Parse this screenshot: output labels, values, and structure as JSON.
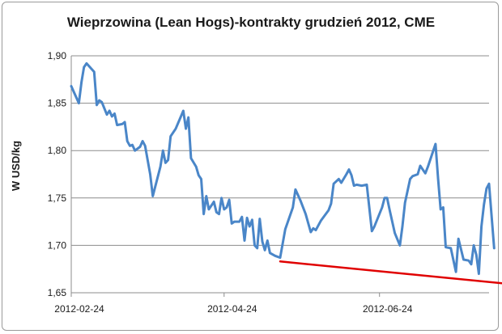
{
  "chart_data": {
    "type": "line",
    "title": "Wieprzowina (Lean Hogs)-kontrakty grudzień 2012, CME",
    "xlabel": "",
    "ylabel": "W USD/kg",
    "x_ticks": [
      "2012-02-24",
      "2012-04-24",
      "2012-06-24"
    ],
    "x_range": [
      "2012-02-24",
      "2012-08-06"
    ],
    "y_ticks": [
      "1,65",
      "1,70",
      "1,75",
      "1,80",
      "1,85",
      "1,90"
    ],
    "ylim": [
      1.65,
      1.9
    ],
    "grid": "horizontal",
    "legend": "none",
    "series": [
      {
        "color": "#4a86c8",
        "points": [
          [
            "2012-02-24",
            1.868
          ],
          [
            "2012-02-25",
            1.862
          ],
          [
            "2012-02-27",
            1.85
          ],
          [
            "2012-02-28",
            1.872
          ],
          [
            "2012-02-29",
            1.888
          ],
          [
            "2012-03-01",
            1.892
          ],
          [
            "2012-03-04",
            1.883
          ],
          [
            "2012-03-05",
            1.848
          ],
          [
            "2012-03-06",
            1.853
          ],
          [
            "2012-03-07",
            1.851
          ],
          [
            "2012-03-09",
            1.838
          ],
          [
            "2012-03-10",
            1.842
          ],
          [
            "2012-03-11",
            1.836
          ],
          [
            "2012-03-12",
            1.839
          ],
          [
            "2012-03-13",
            1.827
          ],
          [
            "2012-03-15",
            1.828
          ],
          [
            "2012-03-16",
            1.83
          ],
          [
            "2012-03-17",
            1.81
          ],
          [
            "2012-03-18",
            1.805
          ],
          [
            "2012-03-19",
            1.806
          ],
          [
            "2012-03-20",
            1.8
          ],
          [
            "2012-03-22",
            1.804
          ],
          [
            "2012-03-23",
            1.81
          ],
          [
            "2012-03-24",
            1.805
          ],
          [
            "2012-03-26",
            1.775
          ],
          [
            "2012-03-27",
            1.752
          ],
          [
            "2012-03-30",
            1.783
          ],
          [
            "2012-03-31",
            1.8
          ],
          [
            "2012-04-01",
            1.787
          ],
          [
            "2012-04-02",
            1.79
          ],
          [
            "2012-04-03",
            1.815
          ],
          [
            "2012-04-05",
            1.823
          ],
          [
            "2012-04-08",
            1.842
          ],
          [
            "2012-04-09",
            1.823
          ],
          [
            "2012-04-10",
            1.835
          ],
          [
            "2012-04-11",
            1.792
          ],
          [
            "2012-04-13",
            1.783
          ],
          [
            "2012-04-14",
            1.774
          ],
          [
            "2012-04-15",
            1.77
          ],
          [
            "2012-04-16",
            1.733
          ],
          [
            "2012-04-17",
            1.752
          ],
          [
            "2012-04-18",
            1.738
          ],
          [
            "2012-04-20",
            1.746
          ],
          [
            "2012-04-21",
            1.735
          ],
          [
            "2012-04-22",
            1.733
          ],
          [
            "2012-04-23",
            1.75
          ],
          [
            "2012-04-24",
            1.738
          ],
          [
            "2012-04-25",
            1.74
          ],
          [
            "2012-04-26",
            1.748
          ],
          [
            "2012-04-27",
            1.723
          ],
          [
            "2012-04-28",
            1.725
          ],
          [
            "2012-04-30",
            1.725
          ],
          [
            "2012-05-01",
            1.73
          ],
          [
            "2012-05-02",
            1.705
          ],
          [
            "2012-05-03",
            1.729
          ],
          [
            "2012-05-04",
            1.72
          ],
          [
            "2012-05-05",
            1.727
          ],
          [
            "2012-05-06",
            1.7
          ],
          [
            "2012-05-07",
            1.697
          ],
          [
            "2012-05-08",
            1.728
          ],
          [
            "2012-05-09",
            1.704
          ],
          [
            "2012-05-10",
            1.695
          ],
          [
            "2012-05-11",
            1.705
          ],
          [
            "2012-05-12",
            1.692
          ],
          [
            "2012-05-14",
            1.689
          ],
          [
            "2012-05-16",
            1.687
          ],
          [
            "2012-05-18",
            1.717
          ],
          [
            "2012-05-21",
            1.74
          ],
          [
            "2012-05-22",
            1.759
          ],
          [
            "2012-05-24",
            1.747
          ],
          [
            "2012-05-26",
            1.733
          ],
          [
            "2012-05-28",
            1.714
          ],
          [
            "2012-05-29",
            1.718
          ],
          [
            "2012-05-30",
            1.716
          ],
          [
            "2012-06-01",
            1.726
          ],
          [
            "2012-06-04",
            1.737
          ],
          [
            "2012-06-05",
            1.744
          ],
          [
            "2012-06-06",
            1.765
          ],
          [
            "2012-06-08",
            1.77
          ],
          [
            "2012-06-09",
            1.766
          ],
          [
            "2012-06-11",
            1.775
          ],
          [
            "2012-06-12",
            1.78
          ],
          [
            "2012-06-13",
            1.774
          ],
          [
            "2012-06-14",
            1.763
          ],
          [
            "2012-06-15",
            1.764
          ],
          [
            "2012-06-17",
            1.763
          ],
          [
            "2012-06-19",
            1.764
          ],
          [
            "2012-06-21",
            1.715
          ],
          [
            "2012-06-22",
            1.72
          ],
          [
            "2012-06-25",
            1.74
          ],
          [
            "2012-06-26",
            1.75
          ],
          [
            "2012-06-27",
            1.75
          ],
          [
            "2012-06-28",
            1.737
          ],
          [
            "2012-06-30",
            1.713
          ],
          [
            "2012-07-02",
            1.7
          ],
          [
            "2012-07-03",
            1.72
          ],
          [
            "2012-07-04",
            1.745
          ],
          [
            "2012-07-06",
            1.77
          ],
          [
            "2012-07-07",
            1.773
          ],
          [
            "2012-07-09",
            1.775
          ],
          [
            "2012-07-10",
            1.784
          ],
          [
            "2012-07-12",
            1.776
          ],
          [
            "2012-07-13",
            1.783
          ],
          [
            "2012-07-16",
            1.807
          ],
          [
            "2012-07-17",
            1.77
          ],
          [
            "2012-07-18",
            1.738
          ],
          [
            "2012-07-19",
            1.74
          ],
          [
            "2012-07-20",
            1.698
          ],
          [
            "2012-07-22",
            1.697
          ],
          [
            "2012-07-24",
            1.672
          ],
          [
            "2012-07-25",
            1.707
          ],
          [
            "2012-07-27",
            1.685
          ],
          [
            "2012-07-29",
            1.684
          ],
          [
            "2012-07-30",
            1.68
          ],
          [
            "2012-07-31",
            1.7
          ],
          [
            "2012-08-01",
            1.69
          ],
          [
            "2012-08-02",
            1.67
          ],
          [
            "2012-08-03",
            1.72
          ],
          [
            "2012-08-04",
            1.743
          ],
          [
            "2012-08-05",
            1.76
          ],
          [
            "2012-08-06",
            1.765
          ],
          [
            "2012-08-08",
            1.697
          ]
        ]
      },
      {
        "color": "#e00000",
        "points": [
          [
            "2012-05-16",
            1.683
          ],
          [
            "2012-08-15",
            1.659
          ]
        ]
      }
    ]
  }
}
